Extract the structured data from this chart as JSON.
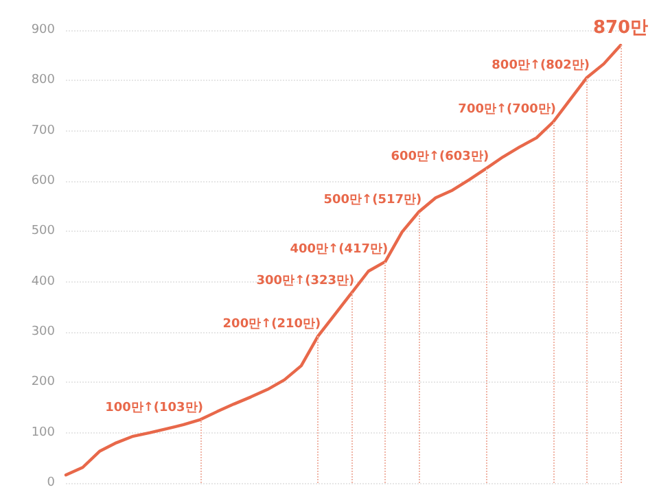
{
  "chart_data": {
    "type": "line",
    "categories": [
      null,
      null,
      null,
      null,
      null,
      null,
      null,
      null,
      null,
      null,
      null,
      null,
      null,
      null,
      null,
      null,
      null,
      null,
      null,
      null,
      null,
      null,
      null,
      null,
      null,
      null,
      null,
      null,
      null,
      null,
      null,
      null,
      null,
      null
    ],
    "series": [
      {
        "color": "#e8684a",
        "values": [
          16,
          31,
          63,
          80,
          93,
          100,
          108,
          116,
          126,
          142,
          157,
          171,
          186,
          205,
          233,
          292,
          335,
          378,
          421,
          440,
          499,
          539,
          567,
          582,
          603,
          625,
          648,
          668,
          686,
          718,
          762,
          806,
          833,
          870
        ],
        "value_labels": [
          null,
          null,
          null,
          null,
          null,
          null,
          null,
          null,
          null,
          null,
          null,
          null,
          null,
          null,
          null,
          null,
          null,
          null,
          null,
          null,
          null,
          null,
          null,
          null,
          null,
          null,
          null,
          null,
          null,
          null,
          null,
          null,
          null,
          "870만"
        ]
      }
    ],
    "ylim": [
      0,
      900
    ],
    "yticks": [
      0,
      100,
      200,
      300,
      400,
      500,
      600,
      700,
      800,
      900
    ],
    "grid": "y",
    "marker": "none",
    "line_style": "solid",
    "annotations": [
      "100만↑(103만)",
      "200만↑(210만)",
      "300만↑(323만)",
      "400만↑(417만)",
      "500만↑(517만)",
      "600만↑(603만)",
      "700만↑(700만)",
      "800만↑(802만)"
    ]
  }
}
